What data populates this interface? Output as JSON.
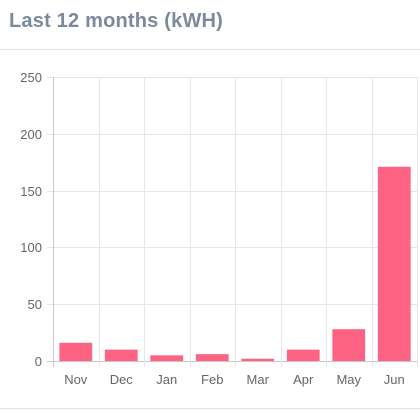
{
  "card": {
    "title": "Last 12 months (kWH)"
  },
  "colors": {
    "bar": "#ff6384",
    "grid": "#e6e6e6",
    "title": "#7a8a9c",
    "tick_text": "#666666"
  },
  "chart_data": {
    "type": "bar",
    "title": "",
    "xlabel": "",
    "ylabel": "",
    "categories": [
      "Nov",
      "Dec",
      "Jan",
      "Feb",
      "Mar",
      "Apr",
      "May",
      "Jun"
    ],
    "series": [
      {
        "values": [
          16,
          10,
          5,
          6,
          2,
          10,
          28,
          171
        ]
      }
    ],
    "ylim": [
      0,
      250
    ],
    "yticks": [
      0,
      50,
      100,
      150,
      200,
      250
    ],
    "grid": true,
    "legend": "none"
  }
}
